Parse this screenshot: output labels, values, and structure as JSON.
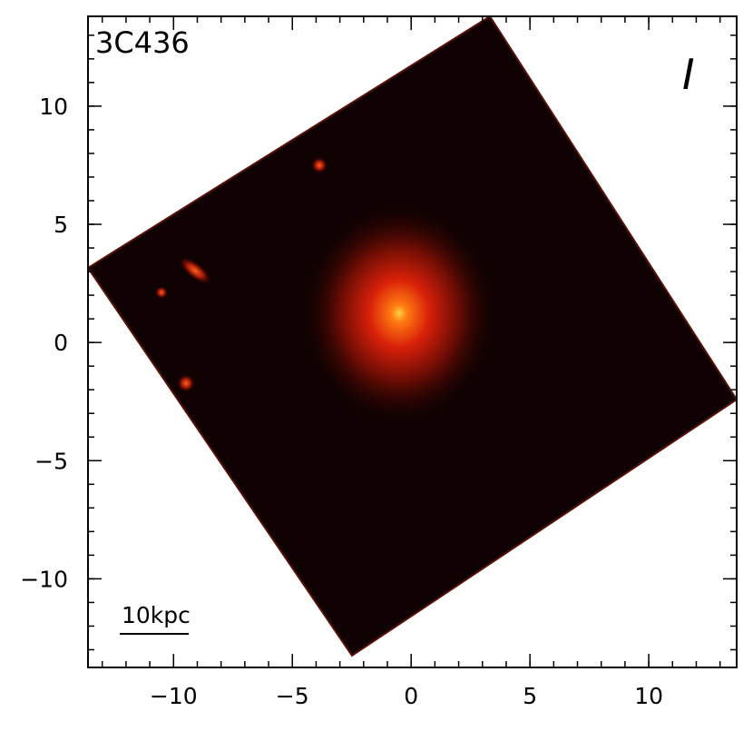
{
  "chart_data": {
    "type": "image",
    "title": "3C436",
    "annotation": "I",
    "scale_bar_label": "10kpc",
    "xlim": [
      -13.6,
      13.7
    ],
    "ylim": [
      -13.75,
      13.8
    ],
    "xticks": [
      {
        "value": -10,
        "label": "−10"
      },
      {
        "value": -5,
        "label": "−5"
      },
      0,
      5,
      10
    ],
    "yticks": [
      {
        "value": -10,
        "label": "−10"
      },
      {
        "value": -5,
        "label": "−5"
      },
      0,
      5,
      10
    ],
    "xminorticks": [
      -13,
      -12,
      -11,
      -10,
      -9,
      -8,
      -7,
      -6,
      -5,
      -4,
      -3,
      -2,
      -1,
      0,
      1,
      2,
      3,
      4,
      5,
      6,
      7,
      8,
      9,
      10,
      11,
      12,
      13
    ],
    "yminorticks": [
      -13,
      -12,
      -11,
      -10,
      -9,
      -8,
      -7,
      -6,
      -5,
      -4,
      -3,
      -2,
      -1,
      0,
      1,
      2,
      3,
      4,
      5,
      6,
      7,
      8,
      9,
      10,
      11,
      12,
      13
    ]
  }
}
